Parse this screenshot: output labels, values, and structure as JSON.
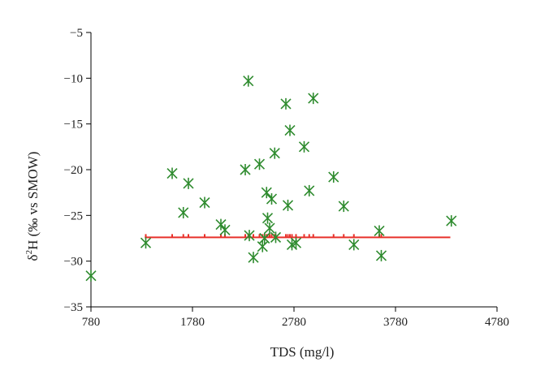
{
  "chart_data": {
    "type": "scatter",
    "title": "",
    "xlabel": "TDS (mg/l)",
    "ylabel_main": "δ",
    "ylabel_sup": "2",
    "ylabel_rest": "H (‰ vs SMOW)",
    "xlim": [
      780,
      4780
    ],
    "ylim": [
      -35,
      -5
    ],
    "x_ticks": [
      780,
      1780,
      2780,
      3780,
      4780
    ],
    "y_ticks": [
      -35,
      -30,
      -25,
      -20,
      -15,
      -10,
      -5
    ],
    "x_tick_labels": [
      "780",
      "1780",
      "2780",
      "3780",
      "4780"
    ],
    "y_tick_labels": [
      "−35",
      "−30",
      "−25",
      "−20",
      "−15",
      "−10",
      "−5"
    ],
    "grid": false,
    "legend": "none",
    "series": [
      {
        "marker": "asterisk-x",
        "color": "#2e8b2e",
        "points": [
          [
            780,
            -31.6
          ],
          [
            1320,
            -28.0
          ],
          [
            1580,
            -20.4
          ],
          [
            1690,
            -24.7
          ],
          [
            1740,
            -21.5
          ],
          [
            1900,
            -23.6
          ],
          [
            2060,
            -26.0
          ],
          [
            2100,
            -26.6
          ],
          [
            2300,
            -20.0
          ],
          [
            2330,
            -10.3
          ],
          [
            2340,
            -27.2
          ],
          [
            2380,
            -29.6
          ],
          [
            2440,
            -19.4
          ],
          [
            2470,
            -28.4
          ],
          [
            2490,
            -27.5
          ],
          [
            2510,
            -22.5
          ],
          [
            2520,
            -25.3
          ],
          [
            2540,
            -26.4
          ],
          [
            2560,
            -23.2
          ],
          [
            2590,
            -18.2
          ],
          [
            2600,
            -27.4
          ],
          [
            2700,
            -12.8
          ],
          [
            2720,
            -23.9
          ],
          [
            2740,
            -15.7
          ],
          [
            2760,
            -28.2
          ],
          [
            2800,
            -28.0
          ],
          [
            2880,
            -17.5
          ],
          [
            2930,
            -22.3
          ],
          [
            2970,
            -12.2
          ],
          [
            3170,
            -20.8
          ],
          [
            3270,
            -24.0
          ],
          [
            3370,
            -28.2
          ],
          [
            3620,
            -26.7
          ],
          [
            3640,
            -29.4
          ],
          [
            4330,
            -25.6
          ]
        ]
      },
      {
        "name": "",
        "type": "line",
        "color": "#e8312a",
        "points": [
          [
            1310,
            -27.4
          ],
          [
            4320,
            -27.4
          ]
        ]
      }
    ]
  }
}
